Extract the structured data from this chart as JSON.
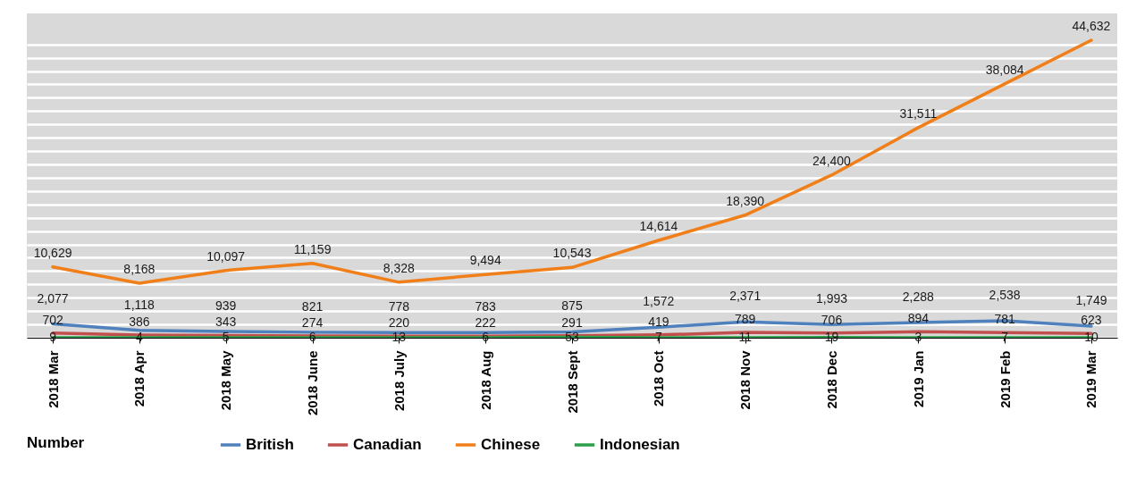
{
  "chart_data": {
    "type": "line",
    "categories": [
      "2018 Mar",
      "2018 Apr",
      "2018 May",
      "2018 June",
      "2018 July",
      "2018 Aug",
      "2018 Sept",
      "2018 Oct",
      "2018 Nov",
      "2018 Dec",
      "2019 Jan",
      "2019 Feb",
      "2019 Mar"
    ],
    "series": [
      {
        "name": "British",
        "color": "#4f81bd",
        "values": [
          2077,
          1118,
          939,
          821,
          778,
          783,
          875,
          1572,
          2371,
          1993,
          2288,
          2538,
          1749
        ],
        "value_labels": [
          "2,077",
          "1,118",
          "939",
          "821",
          "778",
          "783",
          "875",
          "1,572",
          "2,371",
          "1,993",
          "2,288",
          "2,538",
          "1,749"
        ]
      },
      {
        "name": "Canadian",
        "color": "#c0504d",
        "values": [
          702,
          386,
          343,
          274,
          220,
          222,
          291,
          419,
          789,
          706,
          894,
          781,
          623
        ]
      },
      {
        "name": "Chinese",
        "color": "#f07f1a",
        "values": [
          10629,
          8168,
          10097,
          11159,
          8328,
          9494,
          10543,
          14614,
          18390,
          24400,
          31511,
          38084,
          44632
        ],
        "value_labels": [
          "10,629",
          "8,168",
          "10,097",
          "11,159",
          "8,328",
          "9,494",
          "10,543",
          "14,614",
          "18,390",
          "24,400",
          "31,511",
          "38,084",
          "44,632"
        ]
      },
      {
        "name": "Indonesian",
        "color": "#2ca048",
        "values": [
          9,
          4,
          5,
          6,
          13,
          6,
          53,
          7,
          11,
          19,
          3,
          7,
          10
        ]
      }
    ],
    "legend_title": "Number",
    "legend": "bottom",
    "data_labels": true,
    "grid": "y",
    "line_style": "solid",
    "tick_labels": "x"
  }
}
